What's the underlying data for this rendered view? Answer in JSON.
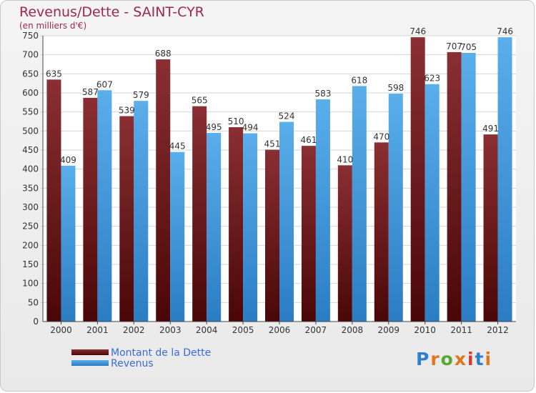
{
  "title": "Revenus/Dette - SAINT-CYR",
  "subtitle": "(en milliers d'€)",
  "brand": "Proxiti",
  "legend": [
    {
      "label": "Montant de la Dette",
      "color": "#6b1a1a"
    },
    {
      "label": "Revenus",
      "color": "#3d95dc"
    }
  ],
  "chart_data": {
    "type": "bar",
    "categories": [
      "2000",
      "2001",
      "2002",
      "2003",
      "2004",
      "2005",
      "2006",
      "2007",
      "2008",
      "2009",
      "2010",
      "2011",
      "2012"
    ],
    "series": [
      {
        "name": "Montant de la Dette",
        "color": "#7a1f22",
        "values": [
          635,
          587,
          539,
          688,
          565,
          510,
          451,
          461,
          410,
          470,
          746,
          707,
          491
        ]
      },
      {
        "name": "Revenus",
        "color": "#3d95dc",
        "values": [
          409,
          607,
          579,
          445,
          495,
          494,
          524,
          583,
          618,
          598,
          623,
          705,
          746
        ]
      }
    ],
    "ylim": [
      0,
      750
    ],
    "yticks": [
      0,
      50,
      100,
      150,
      200,
      250,
      300,
      350,
      400,
      450,
      500,
      550,
      600,
      650,
      700,
      750
    ],
    "grid": true
  }
}
